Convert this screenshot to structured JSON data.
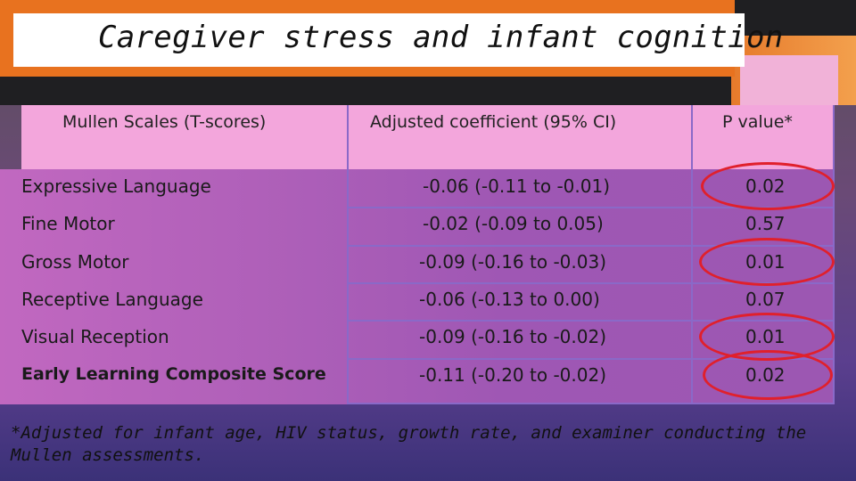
{
  "title": "Caregiver stress and infant cognition",
  "table": {
    "headers": [
      "Mullen Scales (T-scores)",
      "Adjusted  coefficient (95% CI)",
      "P value*"
    ],
    "rows": [
      {
        "scale": "Expressive Language",
        "coef": "-0.06 (-0.11 to -0.01)",
        "p": "0.02",
        "circled": true,
        "bold": false
      },
      {
        "scale": "Fine Motor",
        "coef": "-0.02 (-0.09 to 0.05)",
        "p": "0.57",
        "circled": false,
        "bold": false
      },
      {
        "scale": "Gross Motor",
        "coef": "-0.09 (-0.16 to -0.03)",
        "p": "0.01",
        "circled": true,
        "bold": false
      },
      {
        "scale": "Receptive Language",
        "coef": "-0.06 (-0.13 to  0.00)",
        "p": "0.07",
        "circled": false,
        "bold": false
      },
      {
        "scale": "Visual Reception",
        "coef": "-0.09 (-0.16 to -0.02)",
        "p": "0.01",
        "circled": true,
        "bold": false
      },
      {
        "scale": "Early Learning Composite  Score",
        "coef": "-0.11 (-0.20 to -0.02)",
        "p": "0.02",
        "circled": true,
        "bold": true
      }
    ]
  },
  "footnote": "*Adjusted for infant age, HIV status, growth rate, and examiner conducting the Mullen assessments.",
  "colors": {
    "highlight": "#e0202c",
    "header_bg": "#f3a6dc",
    "accent": "#e8721f"
  }
}
